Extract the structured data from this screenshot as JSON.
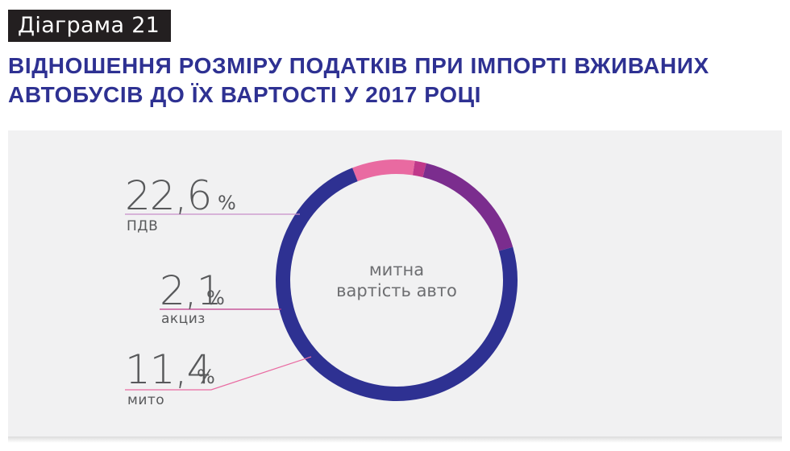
{
  "badge": "Діаграма 21",
  "title": {
    "line1": "ВІДНОШЕННЯ РОЗМІРУ ПОДАТКІВ ПРИ ІМПОРТІ ВЖИВАНИХ",
    "line2": "АВТОБУСІВ ДО ЇХ ВАРТОСТІ У 2017 РОЦІ"
  },
  "center_label": {
    "line1": "митна",
    "line2": "вартість авто"
  },
  "labels": [
    {
      "value": "22,6",
      "unit": "%",
      "name": "ПДВ"
    },
    {
      "value": "2,1",
      "unit": "%",
      "name": "акциз"
    },
    {
      "value": "11,4",
      "unit": "%",
      "name": "мито"
    }
  ],
  "chart_data": {
    "type": "pie",
    "variant": "donut",
    "start_angle_deg": 16,
    "direction": "counterclockwise",
    "base": {
      "name": "митна вартість авто",
      "value": 100,
      "color": "#2e3192"
    },
    "slices": [
      {
        "name": "ПДВ",
        "value": 22.6,
        "color": "#7b2d8e"
      },
      {
        "name": "акциз",
        "value": 2.1,
        "color": "#c0398a"
      },
      {
        "name": "мито",
        "value": 11.4,
        "color": "#e96aa1"
      }
    ]
  }
}
